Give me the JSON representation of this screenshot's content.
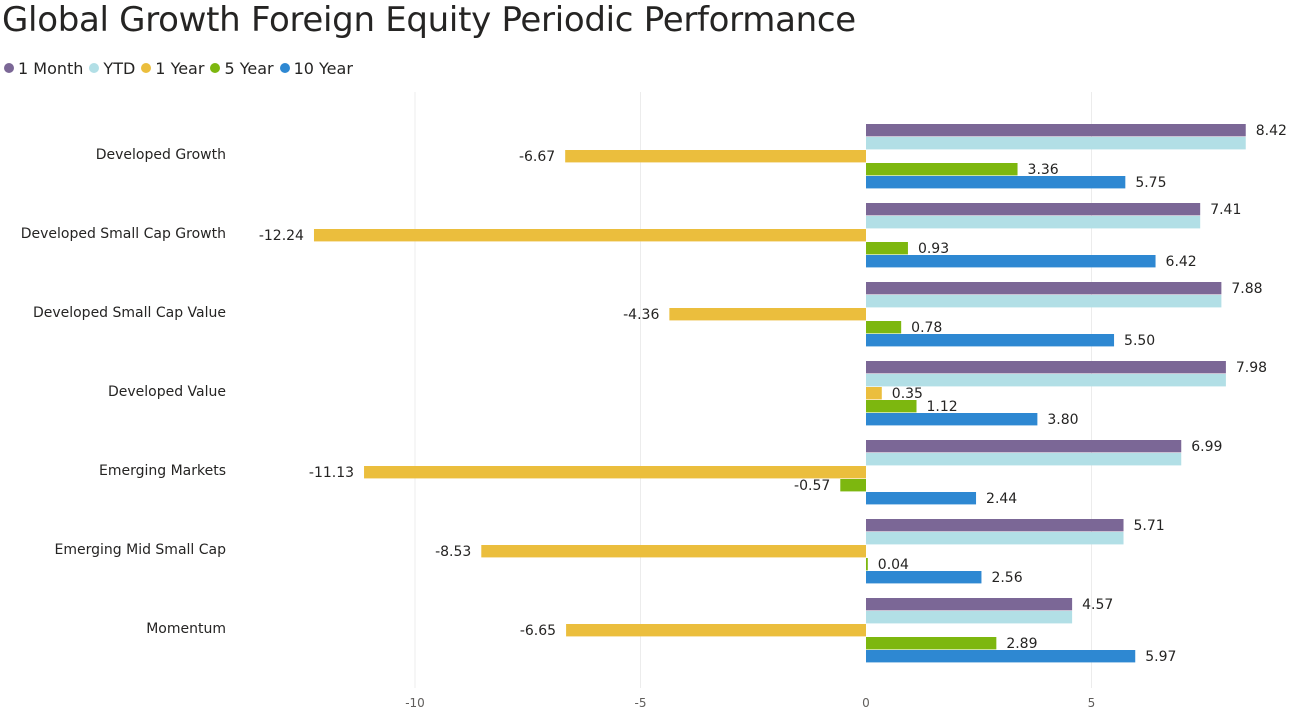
{
  "chart_data": {
    "type": "bar",
    "orientation": "horizontal",
    "title": "Global Growth Foreign Equity Periodic Performance",
    "categories": [
      "Developed Growth",
      "Developed Small Cap Growth",
      "Developed Small Cap Value",
      "Developed Value",
      "Emerging Markets",
      "Emerging Mid Small Cap",
      "Momentum"
    ],
    "series": [
      {
        "name": "1 Month",
        "color": "#7B6796",
        "values": [
          8.42,
          7.41,
          7.88,
          7.98,
          6.99,
          5.71,
          4.57
        ],
        "labels": [
          "8.42",
          "7.41",
          "7.88",
          "7.98",
          "6.99",
          "5.71",
          "4.57"
        ]
      },
      {
        "name": "YTD",
        "color": "#B2DFE6",
        "values": [
          8.42,
          7.41,
          7.88,
          7.98,
          6.99,
          5.71,
          4.57
        ],
        "labels": [
          "",
          "",
          "",
          "",
          "",
          "",
          ""
        ]
      },
      {
        "name": "1 Year",
        "color": "#EBBE3D",
        "values": [
          -6.67,
          -12.24,
          -4.36,
          0.35,
          -11.13,
          -8.53,
          -6.65
        ],
        "labels": [
          "-6.67",
          "-12.24",
          "-4.36",
          "0.35",
          "-11.13",
          "-8.53",
          "-6.65"
        ]
      },
      {
        "name": "5 Year",
        "color": "#7DB70F",
        "values": [
          3.36,
          0.93,
          0.78,
          1.12,
          -0.57,
          0.04,
          2.89
        ],
        "labels": [
          "3.36",
          "0.93",
          "0.78",
          "1.12",
          "-0.57",
          "0.04",
          "2.89"
        ]
      },
      {
        "name": "10 Year",
        "color": "#2E88D2",
        "values": [
          5.75,
          6.42,
          5.5,
          3.8,
          2.44,
          2.56,
          5.97
        ],
        "labels": [
          "5.75",
          "6.42",
          "5.50",
          "3.80",
          "2.44",
          "2.56",
          "5.97"
        ]
      }
    ],
    "xlim": [
      -15,
      9.3
    ],
    "xticks": [
      -10,
      -5,
      0,
      5
    ],
    "xtick_labels": [
      "-10",
      "-5",
      "0",
      "5"
    ],
    "grid": true,
    "legend_position": "top-left"
  }
}
